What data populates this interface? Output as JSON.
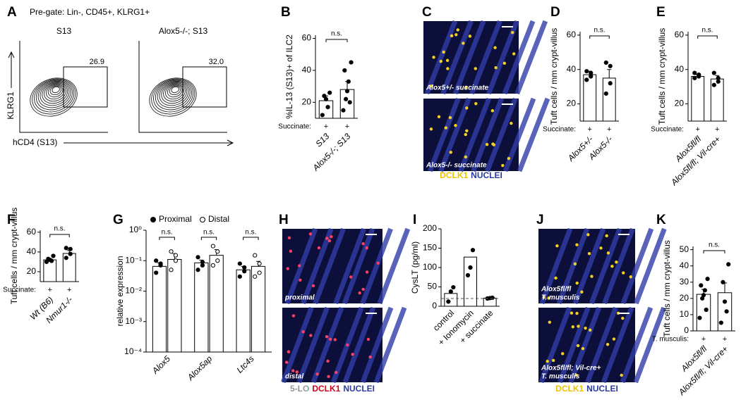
{
  "panel_letters": [
    "A",
    "B",
    "C",
    "D",
    "E",
    "F",
    "G",
    "H",
    "I",
    "J",
    "K"
  ],
  "flow": {
    "pregate": "Pre-gate: Lin-, CD45+, KLRG1+",
    "plots": [
      {
        "title": "S13",
        "gate_value": "26.9"
      },
      {
        "title": "Alox5-/-; S13",
        "gate_value": "32.0"
      }
    ],
    "ylabel": "KLRG1",
    "xlabel": "hCD4 (S13)"
  },
  "micrographs": [
    {
      "panels": [
        [
          "Alox5+/- succinate"
        ],
        [
          "Alox5-/- succinate"
        ]
      ],
      "legend": [
        {
          "text": "DCLK1",
          "color": "#f0c000"
        },
        {
          "text": "NUCLEI",
          "color": "#2b3a9c"
        }
      ],
      "dot_color": "#f5d020"
    },
    {
      "panels": [
        [
          "proximal"
        ],
        [
          "distal"
        ]
      ],
      "legend": [
        {
          "text": "5-LO",
          "color": "#999999"
        },
        {
          "text": "DCLK1",
          "color": "#d0021b"
        },
        {
          "text": "NUCLEI",
          "color": "#2b3a9c"
        }
      ],
      "dot_color": "#ff4060"
    },
    {
      "panels": [
        [
          "Alox5fl/fl",
          "T. musculis"
        ],
        [
          "Alox5fl/fl; Vil-cre+",
          "T. musculis"
        ]
      ],
      "legend": [
        {
          "text": "DCLK1",
          "color": "#f0c000"
        },
        {
          "text": "NUCLEI",
          "color": "#2b3a9c"
        }
      ],
      "dot_color": "#f5d020"
    }
  ],
  "chart_data": [
    {
      "type": "bar",
      "ylabel": "%IL-13 (S13)+ of ILC2",
      "xprefix": "Succinate:",
      "xmarks": [
        "+",
        "+"
      ],
      "categories": [
        "S13",
        "Alox5-/-; S13"
      ],
      "category_style": "italic",
      "values": [
        21,
        28
      ],
      "errors": [
        3,
        5
      ],
      "points": [
        [
          12,
          17,
          22,
          24,
          26
        ],
        [
          15,
          20,
          22,
          27,
          33,
          40,
          45
        ]
      ],
      "ylim": [
        10,
        62
      ],
      "yticks": [
        20,
        40,
        60
      ],
      "significance": "n.s."
    },
    {
      "type": "bar",
      "ylabel": "Tuft cells / mm crypt-villus",
      "xprefix": "Succinate:",
      "xmarks": [
        "+",
        "+"
      ],
      "categories": [
        "Alox5+/-",
        "Alox5-/-"
      ],
      "category_style": "italic",
      "values": [
        37,
        35
      ],
      "errors": [
        2,
        5
      ],
      "points": [
        [
          34,
          36,
          38,
          39
        ],
        [
          26,
          32,
          42,
          44
        ]
      ],
      "ylim": [
        10,
        62
      ],
      "yticks": [
        20,
        40,
        60
      ],
      "significance": "n.s."
    },
    {
      "type": "bar",
      "ylabel": "Tuft cells / mm crypt-villus",
      "xprefix": "Succinate:",
      "xmarks": [
        "+",
        "+"
      ],
      "categories": [
        "Alox5fl/fl",
        "Alox5fl/fl; Vil-cre+"
      ],
      "category_style": "italic",
      "values": [
        36,
        34.5
      ],
      "errors": [
        1,
        2
      ],
      "points": [
        [
          35,
          36,
          37,
          38
        ],
        [
          31,
          33,
          35,
          38
        ]
      ],
      "ylim": [
        10,
        62
      ],
      "yticks": [
        20,
        40,
        60
      ],
      "significance": "n.s."
    },
    {
      "type": "bar",
      "ylabel": "Tuft cells / mm crypt-villus",
      "xprefix": "Succinate:",
      "xmarks": [
        "+",
        "+"
      ],
      "categories": [
        "Wt (B6)",
        "Nmur1-/-"
      ],
      "category_style": "italic",
      "values": [
        32,
        38.5
      ],
      "errors": [
        1,
        3
      ],
      "points": [
        [
          30,
          31,
          32,
          33,
          36
        ],
        [
          34,
          38,
          43,
          44
        ]
      ],
      "ylim": [
        10,
        62
      ],
      "yticks": [
        20,
        40,
        60
      ],
      "significance": "n.s."
    },
    {
      "type": "bar",
      "ylabel": "relative expression",
      "log_scale": true,
      "categories": [
        "Alox5",
        "Alox5ap",
        "Ltc4s"
      ],
      "category_style": "italic",
      "series": [
        {
          "name": "Proximal",
          "color": "#000000",
          "open": false,
          "values": [
            0.065,
            0.085,
            0.05
          ],
          "errors": [
            0.02,
            0.02,
            0.015
          ],
          "points": [
            [
              0.04,
              0.07,
              0.08,
              0.1
            ],
            [
              0.05,
              0.07,
              0.09,
              0.13
            ],
            [
              0.03,
              0.045,
              0.06,
              0.08
            ]
          ]
        },
        {
          "name": "Distal",
          "color": "#000000",
          "open": true,
          "values": [
            0.11,
            0.15,
            0.065
          ],
          "errors": [
            0.06,
            0.08,
            0.03
          ],
          "points": [
            [
              0.05,
              0.1,
              0.15,
              0.2
            ],
            [
              0.07,
              0.1,
              0.2,
              0.3
            ],
            [
              0.03,
              0.04,
              0.08,
              0.15
            ]
          ]
        }
      ],
      "ylim": [
        0.0001,
        1
      ],
      "yticks": [
        {
          "value": 1,
          "label": "10⁰"
        },
        {
          "value": 0.1,
          "label": "10⁻¹"
        },
        {
          "value": 0.01,
          "label": "10⁻²"
        },
        {
          "value": 0.001,
          "label": "10⁻³"
        },
        {
          "value": 0.0001,
          "label": "10⁻⁴"
        }
      ],
      "significance": [
        "n.s.",
        "n.s.",
        "n.s."
      ]
    },
    {
      "type": "bar",
      "ylabel": "CysLT (pg/ml)",
      "categories": [
        "control",
        "+ Ionomycin",
        "+ succinate"
      ],
      "category_style": "normal",
      "values": [
        33,
        127,
        21
      ],
      "points": [
        [
          12,
          38,
          49
        ],
        [
          80,
          100,
          145
        ],
        [
          20,
          21,
          22
        ]
      ],
      "ylim": [
        0,
        200
      ],
      "yticks": [
        0,
        50,
        100,
        150,
        200
      ],
      "reference_line": 20
    },
    {
      "type": "bar",
      "ylabel": "Tuft cells / mm crypt-villus",
      "xprefix": "T. musculis:",
      "xmarks": [
        "+",
        "+"
      ],
      "categories": [
        "Alox5fl/fl",
        "Alox5fl/fl; Vil-cre+"
      ],
      "category_style": "italic",
      "values": [
        22.5,
        23.5
      ],
      "errors": [
        3,
        6
      ],
      "points": [
        [
          8,
          13,
          20,
          22,
          25,
          28,
          32
        ],
        [
          5,
          12,
          18,
          30,
          41
        ]
      ],
      "ylim": [
        0,
        52
      ],
      "yticks": [
        0,
        10,
        20,
        30,
        40,
        50
      ],
      "significance": "n.s."
    }
  ]
}
